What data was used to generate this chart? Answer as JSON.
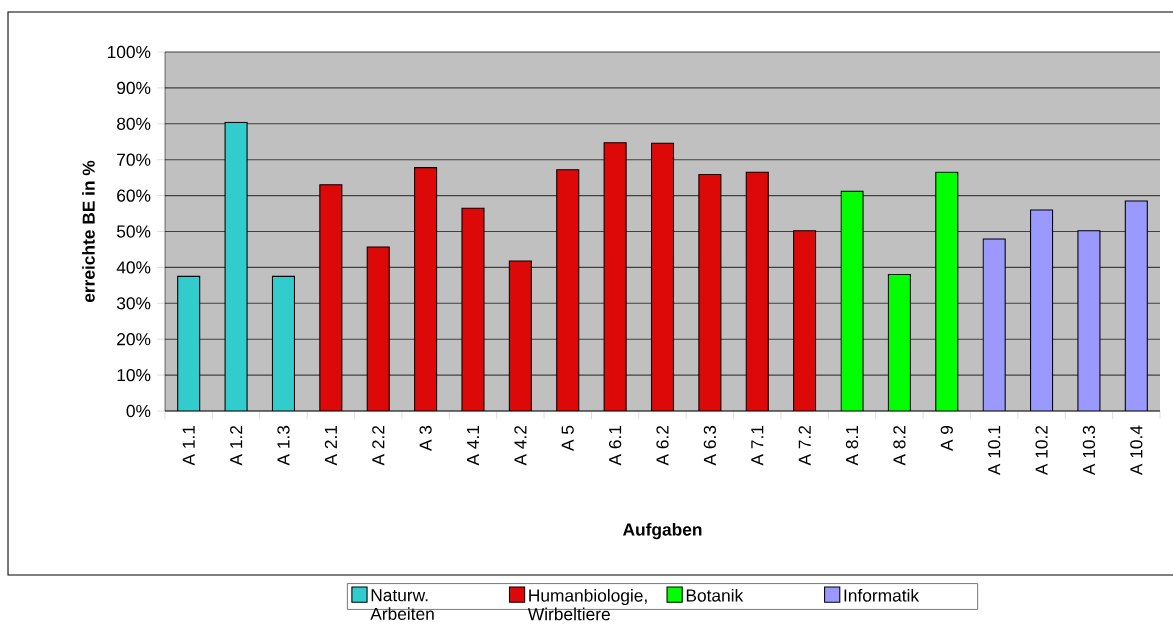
{
  "chart_data": {
    "type": "bar",
    "xlabel": "Aufgaben",
    "ylabel": "erreichte BE in %",
    "categories": [
      "A 1.1",
      "A 1.2",
      "A 1.3",
      "A 2.1",
      "A 2.2",
      "A 3",
      "A 4.1",
      "A 4.2",
      "A 5",
      "A 6.1",
      "A 6.2",
      "A 6.3",
      "A 7.1",
      "A 7.2",
      "A 8.1",
      "A 8.2",
      "A 9",
      "A 10.1",
      "A 10.2",
      "A 10.3",
      "A 10.4"
    ],
    "series": [
      {
        "name": "Naturw. Arbeiten",
        "color": "#33cccc",
        "values": [
          37.5,
          80.4,
          37.5,
          null,
          null,
          null,
          null,
          null,
          null,
          null,
          null,
          null,
          null,
          null,
          null,
          null,
          null,
          null,
          null,
          null,
          null
        ]
      },
      {
        "name": "Humanbiologie, Wirbeltiere",
        "color": "#dd0808",
        "values": [
          null,
          null,
          null,
          63.0,
          45.7,
          67.8,
          56.5,
          41.8,
          67.2,
          74.7,
          74.6,
          65.9,
          66.5,
          50.2,
          null,
          null,
          null,
          null,
          null,
          null,
          null
        ]
      },
      {
        "name": "Botanik",
        "color": "#00ff00",
        "values": [
          null,
          null,
          null,
          null,
          null,
          null,
          null,
          null,
          null,
          null,
          null,
          null,
          null,
          null,
          61.2,
          38.0,
          66.5,
          null,
          null,
          null,
          null
        ]
      },
      {
        "name": "Informatik",
        "color": "#9999ff",
        "values": [
          null,
          null,
          null,
          null,
          null,
          null,
          null,
          null,
          null,
          null,
          null,
          null,
          null,
          null,
          null,
          null,
          null,
          47.9,
          56.0,
          50.2,
          58.5
        ]
      }
    ],
    "ylim": [
      0,
      100
    ],
    "yticks": [
      {
        "value": 0,
        "label": "0%"
      },
      {
        "value": 10,
        "label": "10%"
      },
      {
        "value": 20,
        "label": "20%"
      },
      {
        "value": 30,
        "label": "30%"
      },
      {
        "value": 40,
        "label": "40%"
      },
      {
        "value": 50,
        "label": "50%"
      },
      {
        "value": 60,
        "label": "60%"
      },
      {
        "value": 70,
        "label": "70%"
      },
      {
        "value": 80,
        "label": "80%"
      },
      {
        "value": 90,
        "label": "90%"
      },
      {
        "value": 100,
        "label": "100%"
      }
    ],
    "grid": "y",
    "legend": "bottom"
  }
}
